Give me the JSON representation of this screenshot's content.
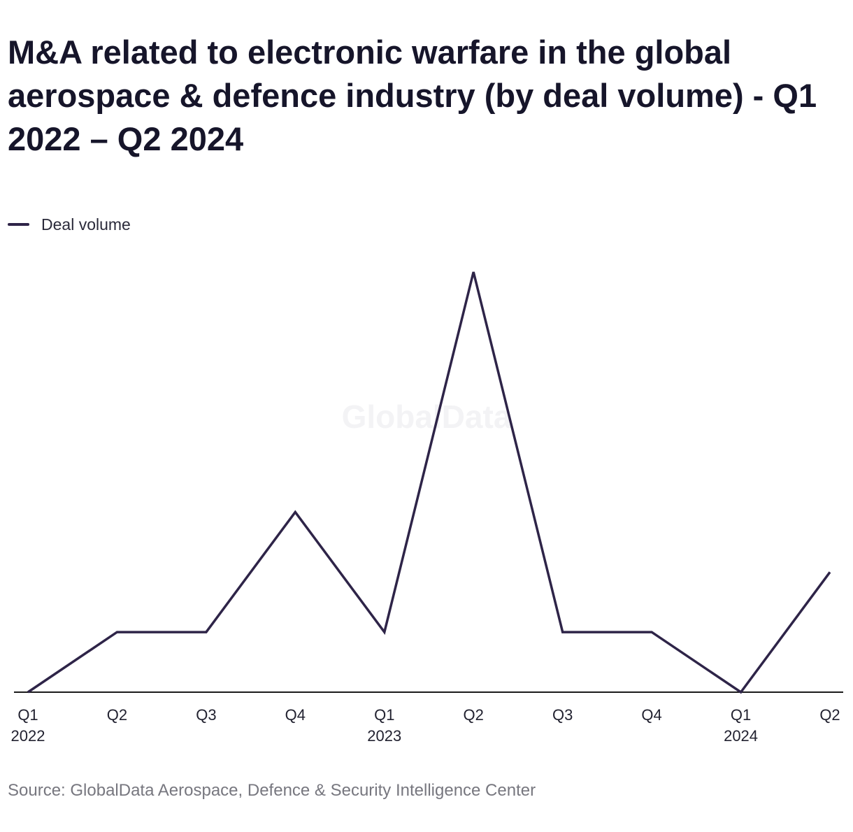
{
  "colors": {
    "line": "#2e2448",
    "axis": "#1a1a1a"
  },
  "watermark": "GlobalData",
  "source": "Source: GlobalData Aerospace, Defence & Security Intelligence Center",
  "chart_data": {
    "type": "line",
    "title": "M&A related to electronic warfare in the global aerospace & defence industry (by deal volume) - Q1 2022 – Q2 2024",
    "xlabel": "",
    "ylabel": "",
    "categories": [
      "Q1",
      "Q2",
      "Q3",
      "Q4",
      "Q1",
      "Q2",
      "Q3",
      "Q4",
      "Q1",
      "Q2"
    ],
    "year_labels": [
      "2022",
      "",
      "",
      "",
      "2023",
      "",
      "",
      "",
      "2024",
      ""
    ],
    "series": [
      {
        "name": "Deal volume",
        "values": [
          0,
          1,
          1,
          3,
          1,
          7,
          1,
          1,
          0,
          2
        ]
      }
    ],
    "ylim": [
      0,
      7
    ],
    "grid": false,
    "y_axis_labels_shown": false,
    "legend": "top-left"
  }
}
